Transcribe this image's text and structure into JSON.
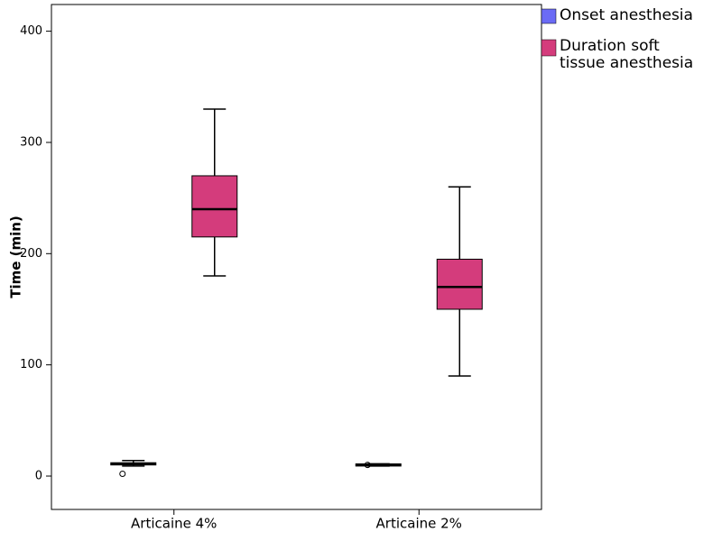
{
  "chart_data": {
    "type": "box",
    "y_label": "Time (min)",
    "categories": [
      "Articaine 4%",
      "Articaine 2%"
    ],
    "series": [
      {
        "name": "Onset anesthesia",
        "color": "#6b6bf5",
        "values": [
          {
            "min": 9,
            "q1": 10,
            "median": 11,
            "q3": 12,
            "max": 14
          },
          {
            "min": 9,
            "q1": 9,
            "median": 10,
            "q3": 11,
            "max": 11
          }
        ],
        "outliers": [
          [
            2
          ],
          [
            10
          ]
        ]
      },
      {
        "name": "Duration soft tissue anesthesia",
        "color": "#d43c7c",
        "values": [
          {
            "min": 180,
            "q1": 215,
            "median": 240,
            "q3": 270,
            "max": 330
          },
          {
            "min": 90,
            "q1": 150,
            "median": 170,
            "q3": 195,
            "max": 260
          }
        ]
      }
    ],
    "ylim": [
      -30,
      424
    ],
    "yticks": [
      0,
      100,
      200,
      300,
      400
    ],
    "legend": "right"
  }
}
